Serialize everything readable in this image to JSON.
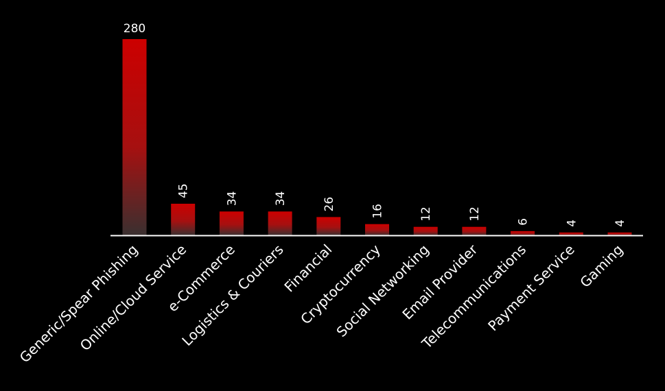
{
  "chart_data": {
    "type": "bar",
    "title": "",
    "xlabel": "",
    "ylabel": "",
    "ylim": [
      0,
      280
    ],
    "grid": false,
    "legend": "none",
    "categories": [
      "Generic/Spear Phishing",
      "Online/Cloud Service",
      "e-Commerce",
      "Logistics & Couriers",
      "Financial",
      "Cryptocurrency",
      "Social Networking",
      "Email Provider",
      "Telecommunications",
      "Payment Service",
      "Gaming"
    ],
    "values": [
      280,
      45,
      34,
      34,
      26,
      16,
      12,
      12,
      6,
      4,
      4
    ],
    "colors": {
      "background": "#000000",
      "bar_top": "#cc0000",
      "bar_bottom": "#3a3030",
      "axis": "#ffffff",
      "text": "#ffffff"
    }
  }
}
